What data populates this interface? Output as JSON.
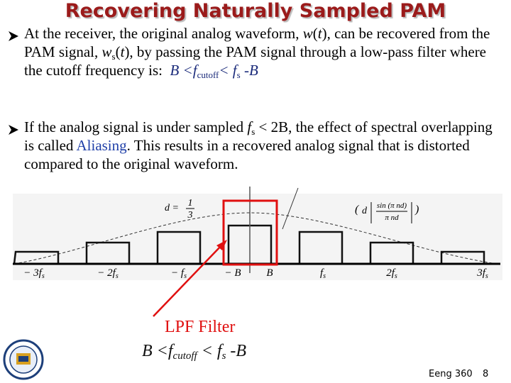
{
  "header": {
    "title": "Recovering Naturally Sampled PAM"
  },
  "bullets": [
    {
      "parts": [
        "At the receiver, the original analog waveform, ",
        "w",
        "(",
        "t",
        "), can be recovered from the PAM signal, ",
        "w",
        "s",
        "(",
        "t",
        "), by passing the PAM signal through a low-pass filter where the cutoff frequency is:",
        "B <f",
        "cutoff",
        "< f",
        "s",
        " -B"
      ]
    },
    {
      "parts": [
        "If the analog signal is under sampled ",
        "f",
        "s",
        " < 2B, the effect of spectral overlapping is called ",
        "Aliasing",
        ". This results in a recovered analog signal that is distorted compared to the original waveform."
      ]
    }
  ],
  "figure": {
    "axis_labels": [
      {
        "text": "− 3f",
        "sub": "s"
      },
      {
        "text": "− 2f",
        "sub": "s"
      },
      {
        "text": "− f",
        "sub": "s"
      },
      {
        "text": "− B"
      },
      {
        "text": "B"
      },
      {
        "text": "f",
        "sub": "s"
      },
      {
        "text": "2f",
        "sub": "s"
      },
      {
        "text": "3f",
        "sub": "s"
      }
    ],
    "duty": {
      "lhs": "d =",
      "num": "1",
      "den": "3"
    },
    "envelope": {
      "d": "d",
      "num": "sin (π nd)",
      "den": "π nd"
    }
  },
  "annotation": {
    "title": "LPF Filter",
    "parts": [
      "B <f",
      "cutoff",
      " < f",
      "s",
      " -B"
    ]
  },
  "footer": {
    "course": "Eeng 360",
    "page": "8"
  }
}
